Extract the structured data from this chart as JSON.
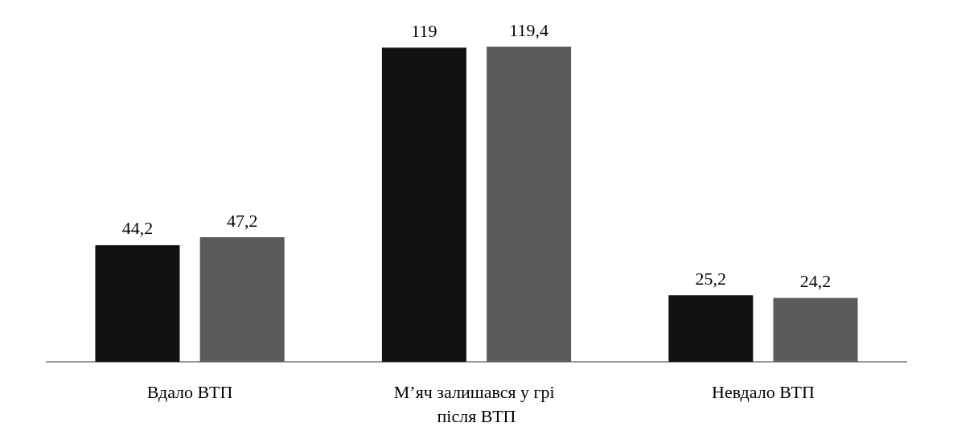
{
  "chart_data": {
    "type": "bar",
    "categories": [
      "Вдало ВТП",
      "М’яч залишався у грі після ВТП",
      "Невдало ВТП"
    ],
    "series": [
      {
        "color": "#111111",
        "values": [
          44.2,
          119,
          25.2
        ],
        "value_labels": [
          "44,2",
          "119",
          "25,2"
        ]
      },
      {
        "color": "#5b5b5b",
        "values": [
          47.2,
          119.4,
          24.2
        ],
        "value_labels": [
          "47,2",
          "119,4",
          "24,2"
        ]
      }
    ]
  }
}
